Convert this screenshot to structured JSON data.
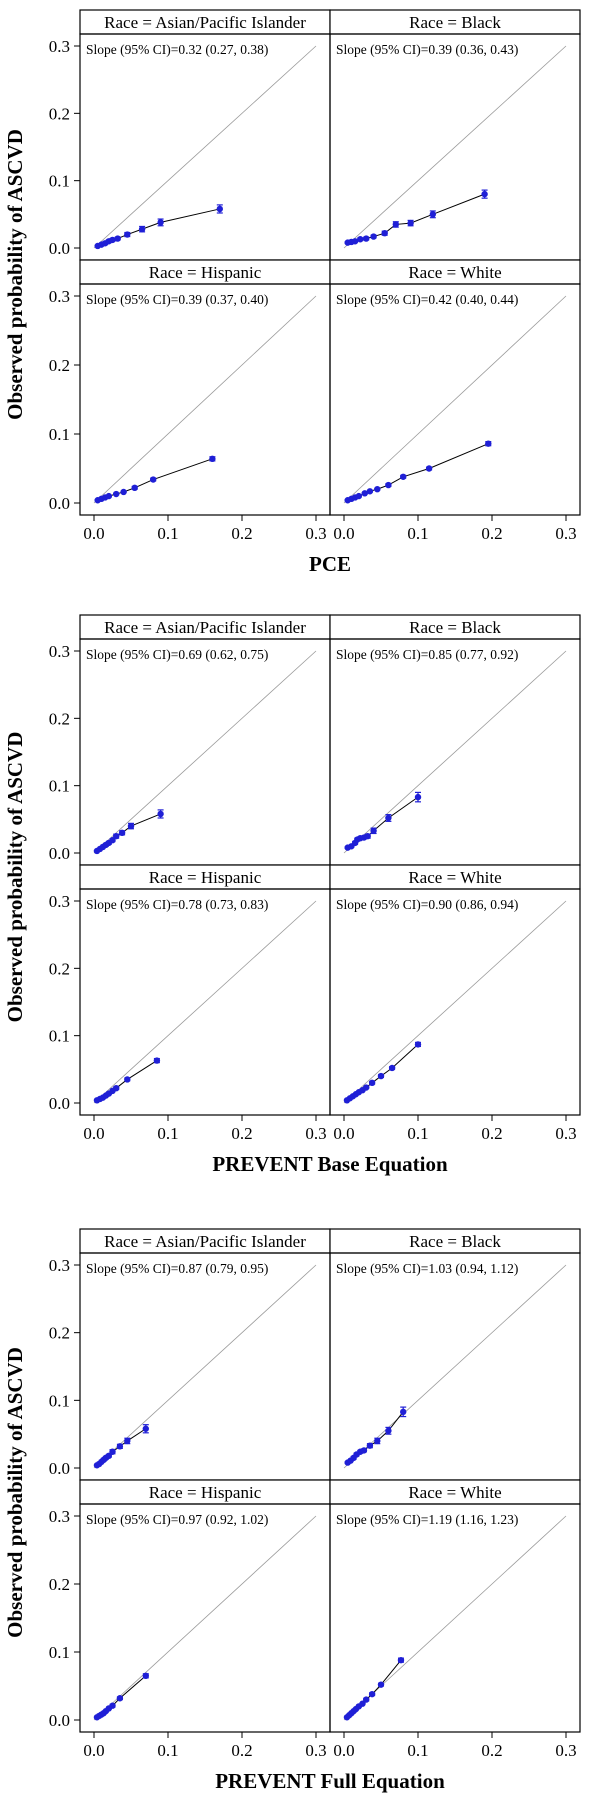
{
  "figure": {
    "ylabel": "Observed probability of ASCVD",
    "x_ticks": [
      "0.0",
      "0.1",
      "0.2",
      "0.3"
    ],
    "y_ticks": [
      "0.0",
      "0.1",
      "0.2",
      "0.3"
    ]
  },
  "chart_data": [
    {
      "type": "scatter",
      "xlabel": "PCE",
      "ylabel": "Observed probability of ASCVD",
      "xlim": [
        0,
        0.3
      ],
      "ylim": [
        0,
        0.3
      ],
      "reference_line": "y = x",
      "panels": [
        {
          "title": "Race = Asian/Pacific Islander",
          "slope_text": "Slope (95% CI)=0.32 (0.27, 0.38)",
          "points": [
            [
              0.005,
              0.003
            ],
            [
              0.01,
              0.005
            ],
            [
              0.015,
              0.007
            ],
            [
              0.02,
              0.01
            ],
            [
              0.025,
              0.012
            ],
            [
              0.032,
              0.014
            ],
            [
              0.045,
              0.02
            ],
            [
              0.065,
              0.028
            ],
            [
              0.09,
              0.038
            ],
            [
              0.17,
              0.058
            ]
          ],
          "err": [
            0.001,
            0.001,
            0.002,
            0.002,
            0.002,
            0.002,
            0.003,
            0.004,
            0.005,
            0.006
          ]
        },
        {
          "title": "Race = Black",
          "slope_text": "Slope (95% CI)=0.39 (0.36, 0.43)",
          "points": [
            [
              0.005,
              0.008
            ],
            [
              0.01,
              0.009
            ],
            [
              0.015,
              0.01
            ],
            [
              0.022,
              0.013
            ],
            [
              0.03,
              0.014
            ],
            [
              0.04,
              0.017
            ],
            [
              0.055,
              0.022
            ],
            [
              0.07,
              0.035
            ],
            [
              0.09,
              0.037
            ],
            [
              0.12,
              0.05
            ],
            [
              0.19,
              0.08
            ]
          ],
          "err": [
            0.001,
            0.001,
            0.001,
            0.002,
            0.002,
            0.002,
            0.003,
            0.004,
            0.004,
            0.005,
            0.006
          ]
        },
        {
          "title": "Race = Hispanic",
          "slope_text": "Slope (95% CI)=0.39 (0.37, 0.40)",
          "points": [
            [
              0.005,
              0.004
            ],
            [
              0.01,
              0.006
            ],
            [
              0.015,
              0.008
            ],
            [
              0.02,
              0.01
            ],
            [
              0.03,
              0.013
            ],
            [
              0.04,
              0.016
            ],
            [
              0.055,
              0.022
            ],
            [
              0.08,
              0.034
            ],
            [
              0.16,
              0.064
            ]
          ],
          "err": [
            0.001,
            0.001,
            0.001,
            0.001,
            0.001,
            0.001,
            0.002,
            0.002,
            0.003
          ]
        },
        {
          "title": "Race = White",
          "slope_text": "Slope (95% CI)=0.42 (0.40, 0.44)",
          "points": [
            [
              0.005,
              0.004
            ],
            [
              0.01,
              0.006
            ],
            [
              0.015,
              0.008
            ],
            [
              0.02,
              0.01
            ],
            [
              0.028,
              0.014
            ],
            [
              0.035,
              0.017
            ],
            [
              0.045,
              0.02
            ],
            [
              0.06,
              0.026
            ],
            [
              0.08,
              0.038
            ],
            [
              0.115,
              0.05
            ],
            [
              0.195,
              0.086
            ]
          ],
          "err": [
            0.001,
            0.001,
            0.001,
            0.001,
            0.001,
            0.001,
            0.001,
            0.002,
            0.002,
            0.002,
            0.003
          ]
        }
      ]
    },
    {
      "type": "scatter",
      "xlabel": "PREVENT Base Equation",
      "ylabel": "Observed probability of ASCVD",
      "xlim": [
        0,
        0.3
      ],
      "ylim": [
        0,
        0.3
      ],
      "reference_line": "y = x",
      "panels": [
        {
          "title": "Race = Asian/Pacific Islander",
          "slope_text": "Slope (95% CI)=0.69 (0.62, 0.75)",
          "points": [
            [
              0.004,
              0.003
            ],
            [
              0.008,
              0.006
            ],
            [
              0.012,
              0.009
            ],
            [
              0.016,
              0.012
            ],
            [
              0.02,
              0.015
            ],
            [
              0.025,
              0.019
            ],
            [
              0.03,
              0.025
            ],
            [
              0.038,
              0.03
            ],
            [
              0.05,
              0.04
            ],
            [
              0.09,
              0.058
            ]
          ],
          "err": [
            0.001,
            0.001,
            0.001,
            0.002,
            0.002,
            0.002,
            0.003,
            0.003,
            0.004,
            0.006
          ]
        },
        {
          "title": "Race = Black",
          "slope_text": "Slope (95% CI)=0.85 (0.77, 0.92)",
          "points": [
            [
              0.005,
              0.008
            ],
            [
              0.01,
              0.01
            ],
            [
              0.015,
              0.015
            ],
            [
              0.018,
              0.02
            ],
            [
              0.022,
              0.022
            ],
            [
              0.027,
              0.023
            ],
            [
              0.032,
              0.025
            ],
            [
              0.04,
              0.033
            ],
            [
              0.06,
              0.052
            ],
            [
              0.1,
              0.083
            ]
          ],
          "err": [
            0.001,
            0.001,
            0.002,
            0.002,
            0.002,
            0.002,
            0.003,
            0.004,
            0.005,
            0.007
          ]
        },
        {
          "title": "Race = Hispanic",
          "slope_text": "Slope (95% CI)=0.78 (0.73, 0.83)",
          "points": [
            [
              0.004,
              0.004
            ],
            [
              0.008,
              0.006
            ],
            [
              0.012,
              0.008
            ],
            [
              0.016,
              0.011
            ],
            [
              0.02,
              0.014
            ],
            [
              0.025,
              0.018
            ],
            [
              0.03,
              0.022
            ],
            [
              0.045,
              0.035
            ],
            [
              0.085,
              0.063
            ]
          ],
          "err": [
            0.001,
            0.001,
            0.001,
            0.001,
            0.001,
            0.001,
            0.002,
            0.002,
            0.003
          ]
        },
        {
          "title": "Race = White",
          "slope_text": "Slope (95% CI)=0.90 (0.86, 0.94)",
          "points": [
            [
              0.004,
              0.004
            ],
            [
              0.008,
              0.007
            ],
            [
              0.012,
              0.01
            ],
            [
              0.016,
              0.013
            ],
            [
              0.02,
              0.016
            ],
            [
              0.025,
              0.019
            ],
            [
              0.03,
              0.023
            ],
            [
              0.038,
              0.03
            ],
            [
              0.05,
              0.04
            ],
            [
              0.065,
              0.052
            ],
            [
              0.1,
              0.087
            ]
          ],
          "err": [
            0.001,
            0.001,
            0.001,
            0.001,
            0.001,
            0.001,
            0.001,
            0.002,
            0.002,
            0.002,
            0.003
          ]
        }
      ]
    },
    {
      "type": "scatter",
      "xlabel": "PREVENT Full Equation",
      "ylabel": "Observed probability of ASCVD",
      "xlim": [
        0,
        0.3
      ],
      "ylim": [
        0,
        0.3
      ],
      "reference_line": "y = x",
      "panels": [
        {
          "title": "Race = Asian/Pacific Islander",
          "slope_text": "Slope (95% CI)=0.87 (0.79, 0.95)",
          "points": [
            [
              0.004,
              0.004
            ],
            [
              0.007,
              0.006
            ],
            [
              0.01,
              0.009
            ],
            [
              0.013,
              0.012
            ],
            [
              0.016,
              0.015
            ],
            [
              0.02,
              0.018
            ],
            [
              0.025,
              0.024
            ],
            [
              0.035,
              0.032
            ],
            [
              0.045,
              0.04
            ],
            [
              0.07,
              0.058
            ]
          ],
          "err": [
            0.001,
            0.001,
            0.001,
            0.002,
            0.002,
            0.002,
            0.003,
            0.003,
            0.004,
            0.006
          ]
        },
        {
          "title": "Race = Black",
          "slope_text": "Slope (95% CI)=1.03 (0.94, 1.12)",
          "points": [
            [
              0.005,
              0.008
            ],
            [
              0.009,
              0.011
            ],
            [
              0.013,
              0.015
            ],
            [
              0.017,
              0.02
            ],
            [
              0.022,
              0.024
            ],
            [
              0.027,
              0.026
            ],
            [
              0.035,
              0.033
            ],
            [
              0.045,
              0.04
            ],
            [
              0.06,
              0.055
            ],
            [
              0.08,
              0.083
            ]
          ],
          "err": [
            0.001,
            0.001,
            0.002,
            0.002,
            0.002,
            0.002,
            0.003,
            0.004,
            0.005,
            0.007
          ]
        },
        {
          "title": "Race = Hispanic",
          "slope_text": "Slope (95% CI)=0.97 (0.92, 1.02)",
          "points": [
            [
              0.004,
              0.004
            ],
            [
              0.007,
              0.006
            ],
            [
              0.01,
              0.008
            ],
            [
              0.013,
              0.01
            ],
            [
              0.016,
              0.013
            ],
            [
              0.02,
              0.017
            ],
            [
              0.025,
              0.021
            ],
            [
              0.035,
              0.032
            ],
            [
              0.07,
              0.065
            ]
          ],
          "err": [
            0.001,
            0.001,
            0.001,
            0.001,
            0.001,
            0.001,
            0.002,
            0.002,
            0.003
          ]
        },
        {
          "title": "Race = White",
          "slope_text": "Slope (95% CI)=1.19 (1.16, 1.23)",
          "points": [
            [
              0.004,
              0.004
            ],
            [
              0.007,
              0.007
            ],
            [
              0.01,
              0.01
            ],
            [
              0.013,
              0.013
            ],
            [
              0.016,
              0.016
            ],
            [
              0.02,
              0.02
            ],
            [
              0.025,
              0.024
            ],
            [
              0.03,
              0.03
            ],
            [
              0.038,
              0.038
            ],
            [
              0.05,
              0.052
            ],
            [
              0.077,
              0.088
            ]
          ],
          "err": [
            0.001,
            0.001,
            0.001,
            0.001,
            0.001,
            0.001,
            0.001,
            0.002,
            0.002,
            0.002,
            0.003
          ]
        }
      ]
    }
  ]
}
